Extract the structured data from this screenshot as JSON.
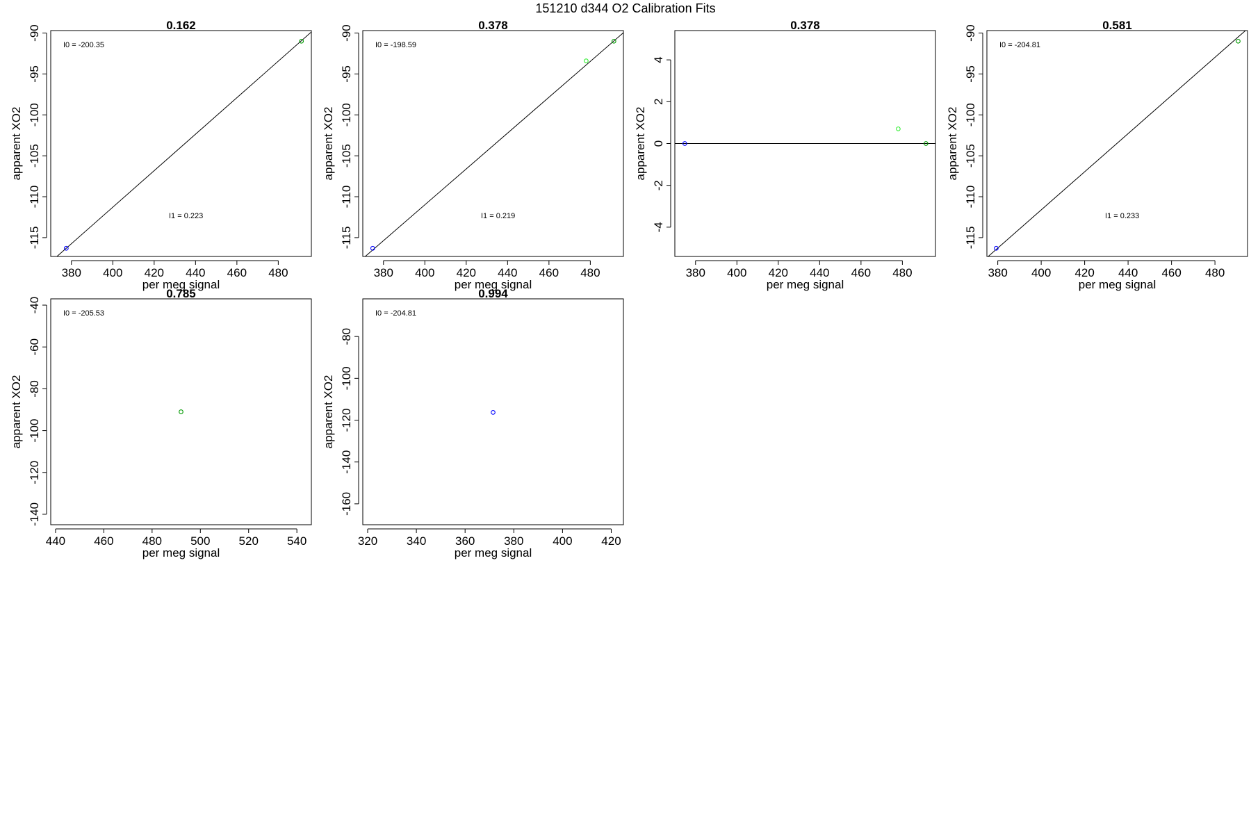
{
  "title": "151210   d344   O2 Calibration Fits",
  "colors": {
    "reference": "#0000ff",
    "standard": "#009900",
    "standard_light": "#33ee33",
    "fit_line": "#000000"
  },
  "chart_data": [
    {
      "type": "scatter",
      "title": "0.162",
      "xlabel": "per meg signal",
      "ylabel": "apparent XO2",
      "xlim": [
        370,
        496
      ],
      "ylim": [
        -117.3,
        -89.7
      ],
      "xticks": [
        380,
        400,
        420,
        440,
        460,
        480
      ],
      "yticks": [
        -90,
        -95,
        -100,
        -105,
        -110,
        -115
      ],
      "annotations": [
        "I0 =  -200.35",
        "I1 =  0.223"
      ],
      "points": [
        {
          "x": 377.5,
          "y": -116.3,
          "color": "blue"
        },
        {
          "x": 491.2,
          "y": -91.0,
          "color": "darkgreen"
        }
      ],
      "fit_line": {
        "x": [
          370,
          496
        ],
        "y": [
          -117.97,
          -89.87
        ]
      }
    },
    {
      "type": "scatter",
      "title": "0.378",
      "xlabel": "per meg signal",
      "ylabel": "apparent XO2",
      "xlim": [
        370,
        496
      ],
      "ylim": [
        -117.3,
        -89.7
      ],
      "xticks": [
        380,
        400,
        420,
        440,
        460,
        480
      ],
      "yticks": [
        -90,
        -95,
        -100,
        -105,
        -110,
        -115
      ],
      "annotations": [
        "I0 =  -198.59",
        "I1 =  0.219"
      ],
      "points": [
        {
          "x": 374.8,
          "y": -116.3,
          "color": "blue"
        },
        {
          "x": 478.0,
          "y": -93.4,
          "color": "green"
        },
        {
          "x": 491.4,
          "y": -91.0,
          "color": "darkgreen"
        }
      ],
      "fit_line": {
        "x": [
          370,
          496
        ],
        "y": [
          -117.56,
          -89.96
        ]
      }
    },
    {
      "type": "scatter",
      "title": "0.378",
      "xlabel": "per meg signal",
      "ylabel": "apparent XO2",
      "xlim": [
        370,
        496
      ],
      "ylim": [
        -5.4,
        5.4
      ],
      "xticks": [
        380,
        400,
        420,
        440,
        460,
        480
      ],
      "yticks": [
        4,
        2,
        0,
        -2,
        -4
      ],
      "annotations": [],
      "points": [
        {
          "x": 374.8,
          "y": 0.0,
          "color": "blue"
        },
        {
          "x": 478.0,
          "y": 0.7,
          "color": "green"
        },
        {
          "x": 491.4,
          "y": 0.0,
          "color": "darkgreen"
        }
      ],
      "fit_line": {
        "x": [
          370,
          496
        ],
        "y": [
          0,
          0
        ]
      }
    },
    {
      "type": "scatter",
      "title": "0.581",
      "xlabel": "per meg signal",
      "ylabel": "apparent XO2",
      "xlim": [
        375,
        495
      ],
      "ylim": [
        -117.3,
        -89.7
      ],
      "xticks": [
        380,
        400,
        420,
        440,
        460,
        480
      ],
      "yticks": [
        -90,
        -95,
        -100,
        -105,
        -110,
        -115
      ],
      "annotations": [
        "I0 =  -204.81",
        "I1 =  0.233"
      ],
      "points": [
        {
          "x": 379.3,
          "y": -116.3,
          "color": "blue"
        },
        {
          "x": 490.7,
          "y": -91.0,
          "color": "darkgreen"
        }
      ],
      "fit_line": {
        "x": [
          375,
          495
        ],
        "y": [
          -117.44,
          -89.48
        ]
      }
    },
    {
      "type": "scatter",
      "title": "0.785",
      "xlabel": "per meg signal",
      "ylabel": "apparent XO2",
      "xlim": [
        438,
        546
      ],
      "ylim": [
        -145,
        -37
      ],
      "xticks": [
        440,
        460,
        480,
        500,
        520,
        540
      ],
      "yticks": [
        -40,
        -60,
        -80,
        -100,
        -120,
        -140
      ],
      "annotations": [
        "I0 =  -205.53"
      ],
      "points": [
        {
          "x": 492.0,
          "y": -91.0,
          "color": "darkgreen"
        }
      ]
    },
    {
      "type": "scatter",
      "title": "0.994",
      "xlabel": "per meg signal",
      "ylabel": "apparent XO2",
      "xlim": [
        318,
        425
      ],
      "ylim": [
        -170,
        -62
      ],
      "xticks": [
        320,
        340,
        360,
        380,
        400,
        420
      ],
      "yticks": [
        -80,
        -100,
        -120,
        -140,
        -160
      ],
      "annotations": [
        "I0 =  -204.81"
      ],
      "points": [
        {
          "x": 371.5,
          "y": -116.3,
          "color": "blue"
        }
      ]
    }
  ]
}
